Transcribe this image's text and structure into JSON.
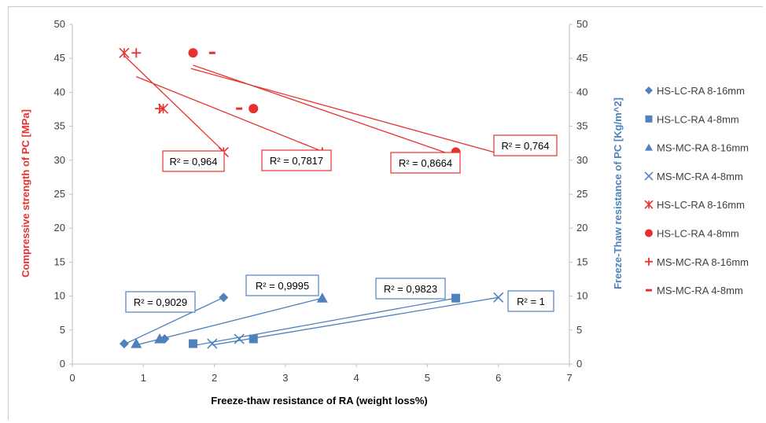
{
  "chart_data": {
    "type": "scatter",
    "xlabel": "Freeze-thaw resistance of RA (weight loss%)",
    "ylabel_left": "Compressive strength of PC [MPa]",
    "ylabel_right": "Freeze-Thaw resistance of PC [Kg/m^2]",
    "xlim": [
      0,
      7
    ],
    "ylim_left": [
      0,
      50
    ],
    "ylim_right": [
      0,
      50
    ],
    "x_ticks": [
      0,
      1,
      2,
      3,
      4,
      5,
      6,
      7
    ],
    "y_ticks": [
      0,
      5,
      10,
      15,
      20,
      25,
      30,
      35,
      40,
      45,
      50
    ],
    "grid": false,
    "legend_position": "right",
    "colors": {
      "red": "#e8312f",
      "blue": "#4f81bd",
      "text_left": "#e8312f",
      "text_right": "#4f81bd"
    },
    "series": [
      {
        "name": "HS-LC-RA 8-16mm",
        "marker": "diamond",
        "color": "#4f81bd",
        "x": [
          0.73,
          1.3,
          2.13
        ],
        "y": [
          3.0,
          3.7,
          9.8
        ],
        "trend": [
          [
            0.73,
            2.9
          ],
          [
            2.13,
            9.8
          ]
        ],
        "r2": "R² = 0,9029"
      },
      {
        "name": "HS-LC-RA 4-8mm",
        "marker": "square",
        "color": "#4f81bd",
        "x": [
          1.7,
          2.55,
          5.4
        ],
        "y": [
          3.0,
          3.7,
          9.7
        ],
        "trend": [
          [
            1.7,
            2.7
          ],
          [
            5.4,
            9.7
          ]
        ],
        "r2": "R² = 0,9823"
      },
      {
        "name": "MS-MC-RA 8-16mm",
        "marker": "triangle",
        "color": "#4f81bd",
        "x": [
          0.9,
          1.23,
          3.52
        ],
        "y": [
          3.0,
          3.7,
          9.7
        ],
        "trend": [
          [
            0.9,
            2.8
          ],
          [
            3.52,
            9.7
          ]
        ],
        "r2": "R² = 0,9995"
      },
      {
        "name": "MS-MC-RA 4-8mm",
        "marker": "x",
        "color": "#4f81bd",
        "x": [
          1.97,
          2.35,
          6.0
        ],
        "y": [
          3.0,
          3.7,
          9.8
        ],
        "trend": [
          [
            1.97,
            2.8
          ],
          [
            6.0,
            9.8
          ]
        ],
        "r2": "R² = 1"
      },
      {
        "name": "HS-LC-RA 8-16mm",
        "marker": "star",
        "color": "#e8312f",
        "x": [
          0.73,
          1.28,
          2.13
        ],
        "y": [
          45.8,
          37.6,
          31.2
        ],
        "trend": [
          [
            0.73,
            45.4
          ],
          [
            2.13,
            31.3
          ]
        ],
        "r2": "R² = 0,964"
      },
      {
        "name": "HS-LC-RA 4-8mm",
        "marker": "circle",
        "color": "#e8312f",
        "x": [
          1.7,
          2.55,
          5.4
        ],
        "y": [
          45.8,
          37.6,
          31.2
        ],
        "trend": [
          [
            1.7,
            44.0
          ],
          [
            5.4,
            30.6
          ]
        ],
        "r2": "R² = 0,8664"
      },
      {
        "name": "MS-MC-RA 8-16mm",
        "marker": "plus",
        "color": "#e8312f",
        "x": [
          0.9,
          1.23,
          3.52
        ],
        "y": [
          45.8,
          37.6,
          31.2
        ],
        "trend": [
          [
            0.9,
            42.3
          ],
          [
            3.52,
            31.3
          ]
        ],
        "r2": "R² = 0,7817"
      },
      {
        "name": "MS-MC-RA 4-8mm",
        "marker": "dash",
        "color": "#e8312f",
        "x": [
          1.97,
          2.35,
          6.0
        ],
        "y": [
          45.8,
          37.6,
          31.2
        ],
        "trend": [
          [
            1.67,
            43.5
          ],
          [
            6.0,
            31.0
          ]
        ],
        "r2": "R² = 0,764"
      }
    ]
  }
}
